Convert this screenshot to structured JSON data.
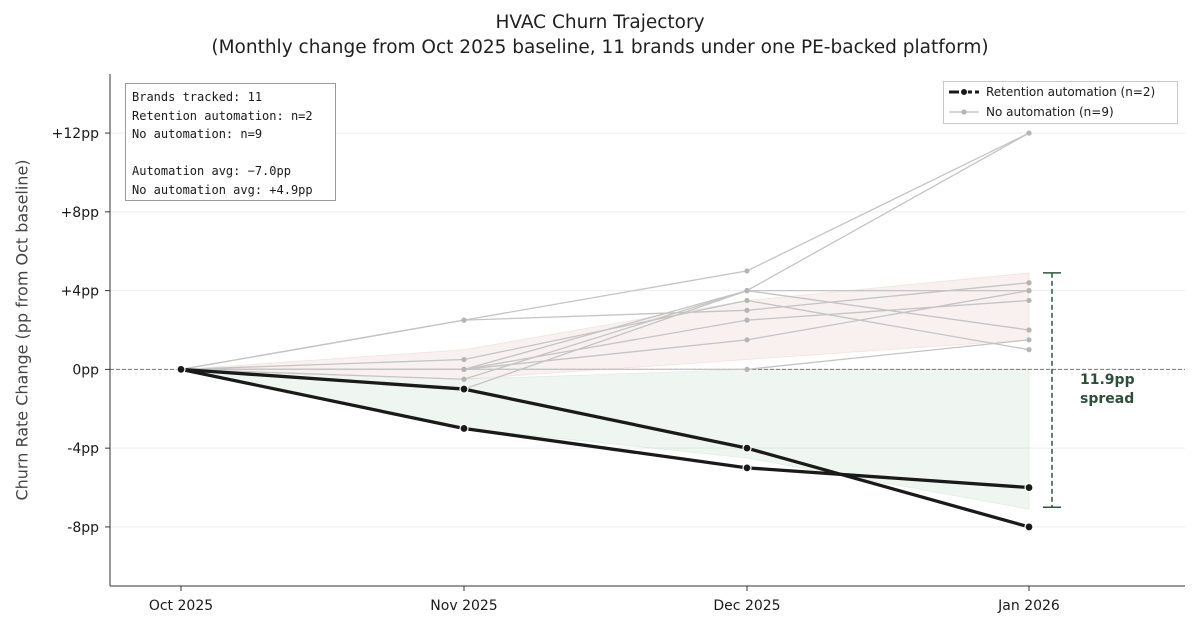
{
  "chart_data": {
    "type": "line",
    "title": "HVAC Churn Trajectory",
    "subtitle": "(Monthly change from Oct 2025 baseline, 11 brands under one PE-backed platform)",
    "xlabel": "",
    "ylabel": "Churn Rate Change (pp from Oct baseline)",
    "categories": [
      "Oct 2025",
      "Nov 2025",
      "Dec 2025",
      "Jan 2026"
    ],
    "ylim": [
      -11,
      15
    ],
    "yticks": [
      -8,
      -4,
      0,
      4,
      8,
      12
    ],
    "ytick_labels": [
      "-8pp",
      "-4pp",
      "0pp",
      "+4pp",
      "+8pp",
      "+12pp"
    ],
    "grid": "horizontal",
    "legend_position": "top-right",
    "series": [
      {
        "group": "automation",
        "name": "Retention automation (n=2)",
        "values": [
          0,
          -1,
          -4,
          -8
        ]
      },
      {
        "group": "automation",
        "values": [
          0,
          -3,
          -5,
          -6
        ]
      },
      {
        "group": "none",
        "name": "No automation (n=9)",
        "values": [
          0,
          2.5,
          5,
          12
        ]
      },
      {
        "group": "none",
        "values": [
          0,
          -1,
          4,
          12
        ]
      },
      {
        "group": "none",
        "values": [
          0,
          2.5,
          3,
          4.4
        ]
      },
      {
        "group": "none",
        "values": [
          0,
          0,
          4,
          4
        ]
      },
      {
        "group": "none",
        "values": [
          0,
          0.5,
          3.5,
          1
        ]
      },
      {
        "group": "none",
        "values": [
          0,
          0,
          2.5,
          3.5
        ]
      },
      {
        "group": "none",
        "values": [
          0,
          -0.5,
          4,
          2
        ]
      },
      {
        "group": "none",
        "values": [
          0,
          0,
          1.5,
          4
        ]
      },
      {
        "group": "none",
        "values": [
          0,
          0,
          0,
          1.5
        ]
      }
    ],
    "bands": [
      {
        "group": "none",
        "color": "#c98a80",
        "lower": [
          0,
          -0.5,
          0.5,
          1.5
        ],
        "upper": [
          0,
          1.0,
          3.5,
          4.9
        ]
      },
      {
        "group": "automation",
        "color": "#7fb392",
        "lower": [
          0,
          -3,
          -4.5,
          -7.1
        ],
        "upper": [
          0,
          -0.5,
          0,
          0
        ]
      }
    ],
    "spread": {
      "value_low": -7,
      "value_high": 4.9,
      "label_line1": "11.9pp",
      "label_line2": "spread"
    },
    "stats_box": [
      "Brands tracked: 11",
      "Retention automation: n=2",
      "No automation: n=9",
      "",
      "Automation avg: −7.0pp",
      "No automation avg: +4.9pp"
    ],
    "colors": {
      "automation": "#1a1a1a",
      "no_automation": "#b5b5b5",
      "spread": "#2d5a3d",
      "zero_line": "#777777",
      "grid": "#eeeeee"
    }
  }
}
